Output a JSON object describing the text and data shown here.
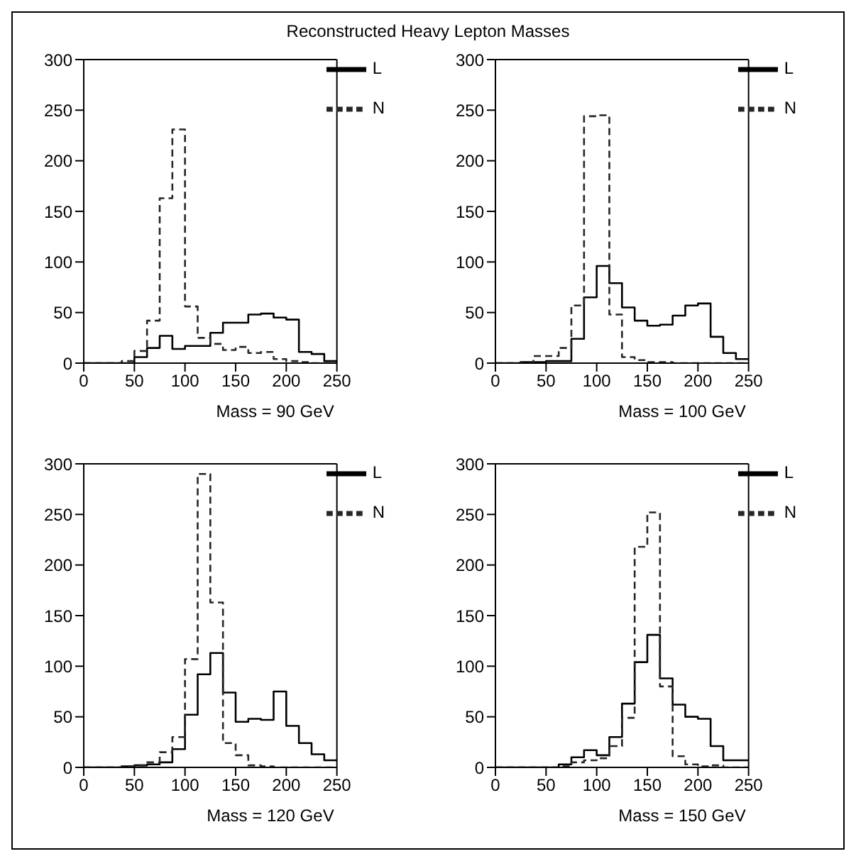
{
  "chart_data": [
    {
      "type": "histogram",
      "title": "Reconstructed Heavy Lepton Masses",
      "xlabel": "Mass = 90 GeV",
      "bins": [
        0,
        12.5,
        25,
        37.5,
        50,
        62.5,
        75,
        87.5,
        100,
        112.5,
        125,
        137.5,
        150,
        162.5,
        175,
        187.5,
        200,
        212.5,
        225,
        237.5,
        250
      ],
      "xlim": [
        0,
        250
      ],
      "xticks": [
        0,
        50,
        100,
        150,
        200,
        250
      ],
      "ylim": [
        0,
        300
      ],
      "yticks": [
        0,
        50,
        100,
        150,
        200,
        250,
        300
      ],
      "legend": "top right",
      "grid": false,
      "marker": "none",
      "series": [
        {
          "name": "L",
          "color": "#000000",
          "line_style": "solid",
          "values": [
            0,
            0,
            0,
            0,
            6,
            15,
            27,
            14,
            17,
            17,
            30,
            40,
            40,
            48,
            49,
            45,
            43,
            11,
            9,
            2
          ]
        },
        {
          "name": "N",
          "color": "#262626",
          "line_style": "dashed",
          "values": [
            0,
            0,
            0,
            2,
            12,
            42,
            163,
            231,
            56,
            25,
            19,
            13,
            16,
            10,
            11,
            4,
            2,
            1,
            0,
            0
          ]
        }
      ]
    },
    {
      "type": "histogram",
      "xlabel": "Mass = 100 GeV",
      "bins": [
        0,
        12.5,
        25,
        37.5,
        50,
        62.5,
        75,
        87.5,
        100,
        112.5,
        125,
        137.5,
        150,
        162.5,
        175,
        187.5,
        200,
        212.5,
        225,
        237.5,
        250
      ],
      "xlim": [
        0,
        250
      ],
      "xticks": [
        0,
        50,
        100,
        150,
        200,
        250
      ],
      "ylim": [
        0,
        300
      ],
      "yticks": [
        0,
        50,
        100,
        150,
        200,
        250,
        300
      ],
      "legend": "top right",
      "grid": false,
      "marker": "none",
      "series": [
        {
          "name": "L",
          "color": "#000000",
          "line_style": "solid",
          "values": [
            0,
            0,
            1,
            1,
            2,
            2,
            24,
            65,
            96,
            79,
            55,
            42,
            37,
            38,
            47,
            57,
            59,
            26,
            10,
            4
          ]
        },
        {
          "name": "N",
          "color": "#262626",
          "line_style": "dashed",
          "values": [
            0,
            0,
            1,
            7,
            7,
            15,
            57,
            244,
            245,
            48,
            6,
            3,
            1,
            1,
            0,
            0,
            0,
            0,
            0,
            0
          ]
        }
      ]
    },
    {
      "type": "histogram",
      "xlabel": "Mass = 120 GeV",
      "bins": [
        0,
        12.5,
        25,
        37.5,
        50,
        62.5,
        75,
        87.5,
        100,
        112.5,
        125,
        137.5,
        150,
        162.5,
        175,
        187.5,
        200,
        212.5,
        225,
        237.5,
        250
      ],
      "xlim": [
        0,
        250
      ],
      "xticks": [
        0,
        50,
        100,
        150,
        200,
        250
      ],
      "ylim": [
        0,
        300
      ],
      "yticks": [
        0,
        50,
        100,
        150,
        200,
        250,
        300
      ],
      "legend": "top right",
      "grid": false,
      "marker": "none",
      "series": [
        {
          "name": "L",
          "color": "#000000",
          "line_style": "solid",
          "values": [
            0,
            0,
            0,
            1,
            2,
            3,
            5,
            18,
            52,
            92,
            113,
            74,
            45,
            48,
            47,
            75,
            41,
            24,
            13,
            7
          ]
        },
        {
          "name": "N",
          "color": "#262626",
          "line_style": "dashed",
          "values": [
            0,
            0,
            0,
            1,
            2,
            5,
            15,
            30,
            107,
            290,
            163,
            24,
            12,
            2,
            1,
            0,
            0,
            0,
            0,
            0
          ]
        }
      ]
    },
    {
      "type": "histogram",
      "xlabel": "Mass = 150 GeV",
      "bins": [
        0,
        12.5,
        25,
        37.5,
        50,
        62.5,
        75,
        87.5,
        100,
        112.5,
        125,
        137.5,
        150,
        162.5,
        175,
        187.5,
        200,
        212.5,
        225,
        237.5,
        250
      ],
      "xlim": [
        0,
        250
      ],
      "xticks": [
        0,
        50,
        100,
        150,
        200,
        250
      ],
      "ylim": [
        0,
        300
      ],
      "yticks": [
        0,
        50,
        100,
        150,
        200,
        250,
        300
      ],
      "legend": "top right",
      "grid": false,
      "marker": "none",
      "series": [
        {
          "name": "L",
          "color": "#000000",
          "line_style": "solid",
          "values": [
            0,
            0,
            0,
            0,
            0,
            3,
            10,
            17,
            12,
            30,
            63,
            104,
            131,
            88,
            62,
            50,
            48,
            21,
            7,
            7
          ]
        },
        {
          "name": "N",
          "color": "#262626",
          "line_style": "dashed",
          "values": [
            0,
            0,
            0,
            0,
            0,
            1,
            5,
            7,
            9,
            21,
            49,
            218,
            252,
            80,
            11,
            3,
            1,
            2,
            0,
            0
          ]
        }
      ]
    }
  ]
}
